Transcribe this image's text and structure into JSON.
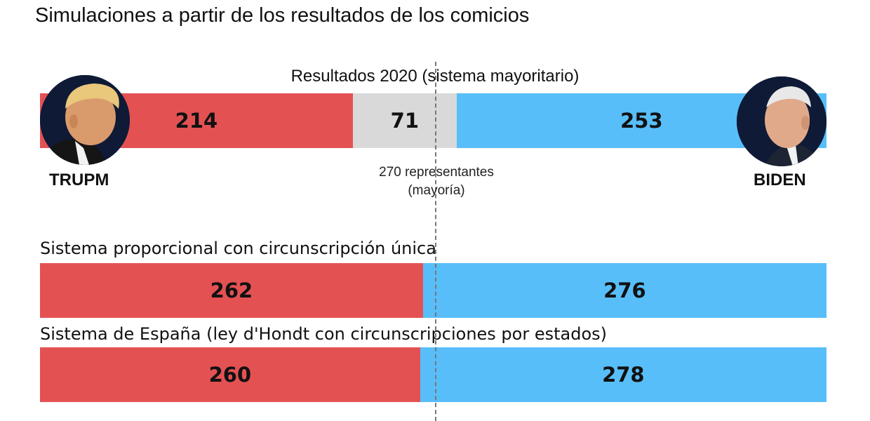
{
  "title": "Simulaciones a partir de los resultados de los comicios",
  "colors": {
    "trump": "#e45153",
    "biden": "#58befa",
    "undecided": "#d9d9d9"
  },
  "candidates": {
    "left": {
      "name": "TRUPM",
      "icon": "trump-portrait"
    },
    "right": {
      "name": "BIDEN",
      "icon": "biden-portrait"
    }
  },
  "majority": {
    "line1": "270 representantes",
    "line2": "(mayoría)",
    "value": 270
  },
  "chart_data": {
    "type": "bar",
    "orientation": "horizontal-stacked",
    "total": 538,
    "xlim": [
      0,
      538
    ],
    "reference_line": 270,
    "rows": [
      {
        "label": "Resultados 2020 (sistema mayoritario)",
        "segments": [
          {
            "key": "trump",
            "value": 214,
            "label": "214"
          },
          {
            "key": "undecided",
            "value": 71,
            "label": "71"
          },
          {
            "key": "biden",
            "value": 253,
            "label": "253"
          }
        ]
      },
      {
        "label": "Sistema proporcional con circunscripción única",
        "segments": [
          {
            "key": "trump",
            "value": 262,
            "label": "262"
          },
          {
            "key": "biden",
            "value": 276,
            "label": "276"
          }
        ]
      },
      {
        "label": "Sistema de España (ley d'Hondt con circunscripciones por estados)",
        "segments": [
          {
            "key": "trump",
            "value": 260,
            "label": "260"
          },
          {
            "key": "biden",
            "value": 278,
            "label": "278"
          }
        ]
      }
    ]
  }
}
